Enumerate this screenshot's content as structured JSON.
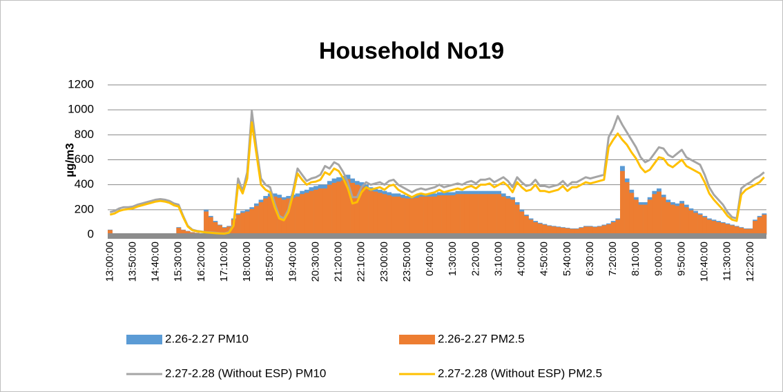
{
  "chart_data": {
    "type": "bar",
    "title": "Household No19",
    "ylabel": "µg/m3",
    "ylim": [
      0,
      1200
    ],
    "yticks": [
      0,
      200,
      400,
      600,
      800,
      1000,
      1200
    ],
    "grid": true,
    "legend": "bottom",
    "categories": [
      "13:00:00",
      null,
      null,
      null,
      null,
      "13:50:00",
      null,
      null,
      null,
      null,
      "14:40:00",
      null,
      null,
      null,
      null,
      "15:30:00",
      null,
      null,
      null,
      null,
      "16:20:00",
      null,
      null,
      null,
      null,
      "17:10:00",
      null,
      null,
      null,
      null,
      "18:00:00",
      null,
      null,
      null,
      null,
      "18:50:00",
      null,
      null,
      null,
      null,
      "19:40:00",
      null,
      null,
      null,
      null,
      "20:30:00",
      null,
      null,
      null,
      null,
      "21:20:00",
      null,
      null,
      null,
      null,
      "22:10:00",
      null,
      null,
      null,
      null,
      "23:00:00",
      null,
      null,
      null,
      null,
      "23:50:00",
      null,
      null,
      null,
      null,
      "0:40:00",
      null,
      null,
      null,
      null,
      "1:30:00",
      null,
      null,
      null,
      null,
      "2:20:00",
      null,
      null,
      null,
      null,
      "3:10:00",
      null,
      null,
      null,
      null,
      "4:00:00",
      null,
      null,
      null,
      null,
      "4:50:00",
      null,
      null,
      null,
      null,
      "5:40:00",
      null,
      null,
      null,
      null,
      "6:30:00",
      null,
      null,
      null,
      null,
      "7:20:00",
      null,
      null,
      null,
      null,
      "8:10:00",
      null,
      null,
      null,
      null,
      "9:00:00",
      null,
      null,
      null,
      null,
      "9:50:00",
      null,
      null,
      null,
      null,
      "10:40:00",
      null,
      null,
      null,
      null,
      "11:30:00",
      null,
      null,
      null,
      null,
      "12:20:00",
      null,
      null,
      null
    ],
    "series": [
      {
        "name": "2.26-2.27 PM10",
        "type": "bar",
        "color": "#5b9bd5",
        "values": [
          40,
          0,
          0,
          0,
          0,
          0,
          0,
          0,
          0,
          0,
          0,
          0,
          0,
          0,
          0,
          60,
          40,
          30,
          20,
          15,
          10,
          200,
          150,
          110,
          80,
          60,
          70,
          130,
          170,
          190,
          200,
          220,
          250,
          280,
          310,
          330,
          330,
          320,
          300,
          310,
          320,
          330,
          350,
          360,
          380,
          390,
          400,
          400,
          430,
          450,
          460,
          470,
          480,
          450,
          430,
          420,
          400,
          380,
          370,
          360,
          350,
          340,
          330,
          330,
          320,
          310,
          310,
          320,
          330,
          330,
          330,
          330,
          340,
          340,
          340,
          340,
          350,
          350,
          350,
          350,
          350,
          350,
          350,
          350,
          350,
          350,
          330,
          310,
          300,
          260,
          200,
          160,
          130,
          110,
          95,
          85,
          75,
          70,
          65,
          60,
          55,
          50,
          50,
          60,
          70,
          70,
          65,
          70,
          80,
          90,
          110,
          130,
          550,
          450,
          360,
          300,
          260,
          260,
          300,
          350,
          370,
          320,
          280,
          260,
          250,
          270,
          240,
          210,
          190,
          170,
          150,
          130,
          120,
          110,
          100,
          90,
          80,
          70,
          60,
          50,
          50,
          120,
          150,
          170
        ]
      },
      {
        "name": "2.26-2.27 PM2.5",
        "type": "bar",
        "color": "#ed7d31",
        "values": [
          37,
          0,
          0,
          0,
          0,
          0,
          0,
          0,
          0,
          0,
          0,
          0,
          0,
          0,
          0,
          55,
          37,
          28,
          18,
          14,
          9,
          185,
          140,
          100,
          75,
          55,
          65,
          120,
          160,
          175,
          185,
          205,
          230,
          260,
          290,
          305,
          305,
          295,
          280,
          290,
          295,
          305,
          325,
          335,
          350,
          360,
          370,
          370,
          400,
          415,
          425,
          435,
          445,
          415,
          400,
          390,
          370,
          350,
          345,
          335,
          325,
          315,
          305,
          305,
          295,
          290,
          290,
          295,
          305,
          305,
          305,
          305,
          315,
          315,
          315,
          315,
          325,
          325,
          325,
          325,
          325,
          325,
          325,
          325,
          325,
          325,
          305,
          290,
          280,
          240,
          185,
          150,
          120,
          100,
          88,
          79,
          70,
          65,
          60,
          55,
          51,
          46,
          46,
          55,
          65,
          65,
          60,
          65,
          74,
          83,
          100,
          120,
          510,
          420,
          335,
          280,
          240,
          240,
          280,
          325,
          345,
          300,
          260,
          240,
          230,
          250,
          220,
          195,
          175,
          160,
          140,
          120,
          110,
          100,
          93,
          83,
          74,
          65,
          55,
          46,
          46,
          110,
          140,
          160
        ]
      },
      {
        "name": "2.27-2.28 (Without ESP) PM10",
        "type": "line",
        "color": "#a5a5a5",
        "values": [
          180,
          190,
          210,
          220,
          220,
          225,
          240,
          250,
          260,
          270,
          280,
          285,
          280,
          270,
          250,
          240,
          150,
          70,
          40,
          30,
          25,
          20,
          18,
          15,
          12,
          10,
          20,
          80,
          450,
          350,
          500,
          990,
          700,
          450,
          400,
          380,
          250,
          150,
          130,
          200,
          350,
          530,
          480,
          430,
          450,
          460,
          480,
          550,
          530,
          580,
          560,
          500,
          420,
          300,
          300,
          380,
          420,
          400,
          410,
          420,
          400,
          430,
          440,
          400,
          380,
          360,
          340,
          360,
          370,
          360,
          370,
          380,
          400,
          380,
          390,
          400,
          410,
          400,
          420,
          430,
          410,
          440,
          440,
          450,
          420,
          440,
          460,
          430,
          380,
          460,
          420,
          390,
          400,
          440,
          390,
          390,
          380,
          390,
          400,
          430,
          390,
          420,
          420,
          440,
          460,
          450,
          460,
          470,
          480,
          780,
          850,
          950,
          880,
          820,
          760,
          700,
          620,
          580,
          600,
          650,
          700,
          690,
          640,
          620,
          650,
          680,
          620,
          600,
          580,
          560,
          480,
          380,
          320,
          280,
          240,
          180,
          140,
          130,
          370,
          400,
          420,
          450,
          470,
          500
        ]
      },
      {
        "name": "2.27-2.28 (Without ESP) PM2.5",
        "type": "line",
        "color": "#ffc000",
        "values": [
          160,
          170,
          190,
          200,
          205,
          210,
          225,
          235,
          245,
          255,
          265,
          270,
          265,
          255,
          235,
          225,
          140,
          65,
          35,
          27,
          22,
          18,
          15,
          12,
          10,
          8,
          15,
          70,
          400,
          330,
          450,
          900,
          650,
          400,
          360,
          340,
          220,
          130,
          115,
          180,
          320,
          490,
          440,
          400,
          420,
          425,
          440,
          500,
          480,
          530,
          510,
          450,
          370,
          250,
          260,
          340,
          380,
          360,
          370,
          380,
          360,
          390,
          400,
          360,
          340,
          320,
          300,
          320,
          330,
          320,
          330,
          340,
          360,
          340,
          350,
          360,
          370,
          360,
          380,
          390,
          370,
          400,
          400,
          410,
          380,
          400,
          420,
          390,
          340,
          420,
          380,
          350,
          360,
          400,
          350,
          350,
          340,
          350,
          360,
          390,
          350,
          380,
          380,
          400,
          420,
          410,
          420,
          430,
          440,
          700,
          760,
          810,
          760,
          720,
          660,
          610,
          540,
          500,
          520,
          570,
          620,
          610,
          560,
          540,
          570,
          600,
          550,
          530,
          510,
          490,
          420,
          330,
          280,
          240,
          200,
          150,
          120,
          110,
          320,
          360,
          380,
          400,
          420,
          460
        ]
      }
    ]
  }
}
